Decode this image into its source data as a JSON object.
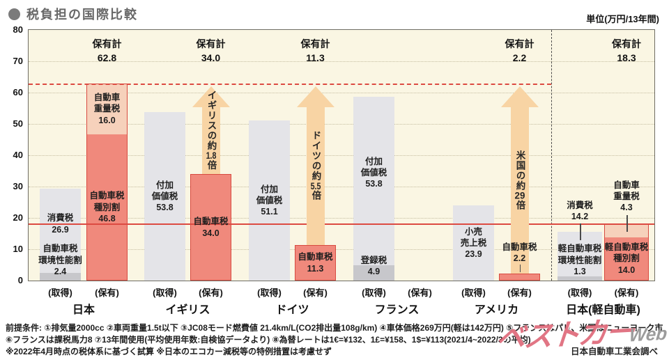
{
  "header": {
    "title": "税負担の国際比較",
    "unit": "単位(万円/13年間)"
  },
  "chart_data": {
    "type": "bar",
    "title": "税負担の国際比較",
    "unit_label": "単位(万円/13年間)",
    "ylim": [
      0,
      80
    ],
    "yticks": [
      0,
      10,
      20,
      30,
      40,
      50,
      60,
      70,
      80
    ],
    "grid": "dotted-horizontal",
    "column_labels": {
      "acquire": "(取得)",
      "own": "(保有)"
    },
    "own_total_label": "保有計",
    "reference_lines": [
      {
        "value": 62.8,
        "style": "dashed",
        "span": "left-of-separator"
      },
      {
        "value": 18.3,
        "style": "solid",
        "span": "full-width"
      }
    ],
    "groups": [
      {
        "country": "日本",
        "own_total": "62.8",
        "acquire_segments": [
          {
            "tax": "自動車税\n環境性能割",
            "value": 2.4,
            "display": "2.4",
            "shade": "gray_dark",
            "label": "inside-bottom"
          },
          {
            "tax": "消費税",
            "value": 26.9,
            "display": "26.9",
            "shade": "gray",
            "label": "inside-center"
          }
        ],
        "own_segments": [
          {
            "tax": "自動車税\n種別割",
            "value": 46.8,
            "display": "46.8",
            "shade": "salmon",
            "label": "inside-center"
          },
          {
            "tax": "自動車\n重量税",
            "value": 16.0,
            "display": "16.0",
            "shade": "pink",
            "label": "inside-center"
          }
        ]
      },
      {
        "country": "イギリス",
        "own_total": "34.0",
        "acquire_segments": [
          {
            "tax": "付加\n価値税",
            "value": 53.8,
            "display": "53.8",
            "shade": "gray",
            "label": "inside-center"
          }
        ],
        "own_segments": [
          {
            "tax": "自動車税",
            "value": 34.0,
            "display": "34.0",
            "shade": "salmon",
            "label": "inside-center"
          }
        ],
        "arrow": {
          "pre": "イギリスの約",
          "num": "1.8",
          "post": "倍"
        }
      },
      {
        "country": "ドイツ",
        "own_total": "11.3",
        "acquire_segments": [
          {
            "tax": "付加\n価値税",
            "value": 51.1,
            "display": "51.1",
            "shade": "gray",
            "label": "inside-center"
          }
        ],
        "own_segments": [
          {
            "tax": "自動車税",
            "value": 11.3,
            "display": "11.3",
            "shade": "salmon",
            "label": "inside-center"
          }
        ],
        "arrow": {
          "pre": "ドイツの約",
          "num": "5.5",
          "post": "倍"
        }
      },
      {
        "country": "フランス",
        "own_total": null,
        "acquire_segments": [
          {
            "tax": "登録税",
            "value": 4.9,
            "display": "4.9",
            "shade": "gray_dark",
            "label": "inside-bottom"
          },
          {
            "tax": "付加\n価値税",
            "value": 53.8,
            "display": "53.8",
            "shade": "gray",
            "label": "inside-center"
          }
        ],
        "own_segments": []
      },
      {
        "country": "アメリカ",
        "own_total": "2.2",
        "acquire_segments": [
          {
            "tax": "小売\n売上税",
            "value": 23.9,
            "display": "23.9",
            "shade": "gray",
            "label": "inside-center"
          }
        ],
        "own_segments": [
          {
            "tax": "自動車税",
            "value": 2.2,
            "display": "2.2",
            "shade": "salmon",
            "label": "above"
          }
        ],
        "arrow": {
          "pre": "米国の約",
          "num": "29",
          "post": "倍"
        }
      },
      {
        "country": "日本(軽自動車)",
        "own_total": "18.3",
        "separator_before": true,
        "acquire_segments": [
          {
            "tax": "軽自動車税\n環境性能割",
            "value": 1.3,
            "display": "1.3",
            "shade": "gray_dark",
            "label": "inside-bottom"
          },
          {
            "tax": "消費税",
            "value": 14.2,
            "display": "14.2",
            "shade": "gray",
            "label": "above"
          }
        ],
        "own_segments": [
          {
            "tax": "軽自動車税\n種別割",
            "value": 14.0,
            "display": "14.0",
            "shade": "salmon",
            "label": "inside-center"
          },
          {
            "tax": "自動車\n重量税",
            "value": 4.3,
            "display": "4.3",
            "shade": "pink",
            "label": "above"
          }
        ]
      }
    ]
  },
  "colors": {
    "plot_bg": "#faf6e3",
    "bar_gray": "#e4e4e8",
    "bar_gray_dark": "#c7c7cb",
    "bar_salmon": "#f0897c",
    "bar_pink": "#f6d1bb",
    "bar_border_red": "#d84a40",
    "arrow_orange": "#f8d4a4",
    "line_red": "#dc4a41",
    "title_gray": "#686868"
  },
  "footnote": {
    "conditions": "前提条件: ①排気量2000cc ②車両重量1.5t以下 ③JC08モード燃費値 21.4km/L(CO2排出量108g/km) ④車体価格269万円(軽は142万円) ⑤フランスはパリ、米国はニューヨーク市 ⑥フランスは課税馬力8 ⑦13年間使用(平均使用年数:自検協データより) ⑧為替レートは1€=¥132、1£=¥158、1$=¥113(2021/4~2022/3の平均)",
    "notes": "※2022年4月時点の税体系に基づく試算 ※日本のエコカー減税等の特例措置は考慮せず",
    "source": "日本自動車工業会調べ"
  },
  "watermark": {
    "main": "ベストカー",
    "sub": "Web"
  }
}
